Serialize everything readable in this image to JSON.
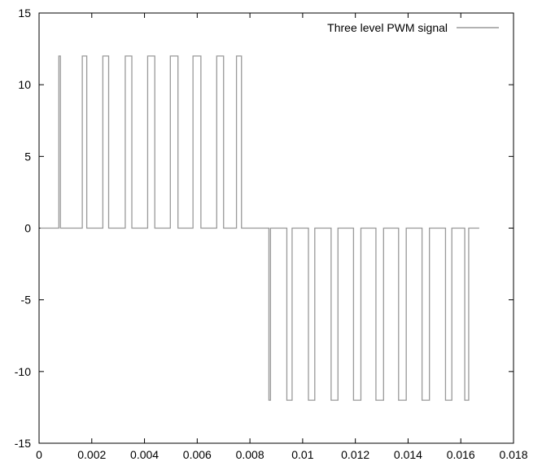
{
  "chart_data": {
    "type": "line",
    "title": "",
    "xlabel": "",
    "ylabel": "",
    "xlim": [
      0,
      0.018
    ],
    "ylim": [
      -15,
      15
    ],
    "xticks": [
      "0",
      "0.002",
      "0.004",
      "0.006",
      "0.008",
      "0.01",
      "0.012",
      "0.014",
      "0.016",
      "0.018"
    ],
    "yticks": [
      "15",
      "10",
      "5",
      "0",
      "-5",
      "-10",
      "-15"
    ],
    "grid": false,
    "legend": {
      "placement": "top-right",
      "entries": [
        "Three level PWM signal"
      ]
    },
    "series": [
      {
        "name": "Three level PWM signal",
        "color": "#999999",
        "pulse_level": 12,
        "positive_pulses": [
          [
            0.00075,
            0.00081
          ],
          [
            0.00164,
            0.00181
          ],
          [
            0.00242,
            0.00264
          ],
          [
            0.00327,
            0.00352
          ],
          [
            0.00412,
            0.00439
          ],
          [
            0.00498,
            0.00527
          ],
          [
            0.00584,
            0.00614
          ],
          [
            0.00674,
            0.007
          ],
          [
            0.00749,
            0.00768
          ]
        ],
        "negative_pulses": [
          [
            0.00872,
            0.00878
          ],
          [
            0.0094,
            0.0096
          ],
          [
            0.01022,
            0.01046
          ],
          [
            0.01108,
            0.01134
          ],
          [
            0.01193,
            0.01221
          ],
          [
            0.01278,
            0.01307
          ],
          [
            0.01364,
            0.01393
          ],
          [
            0.01453,
            0.01481
          ],
          [
            0.01542,
            0.01566
          ],
          [
            0.01615,
            0.0163
          ]
        ],
        "x_start": 5e-05,
        "x_end": 0.0167
      }
    ]
  }
}
